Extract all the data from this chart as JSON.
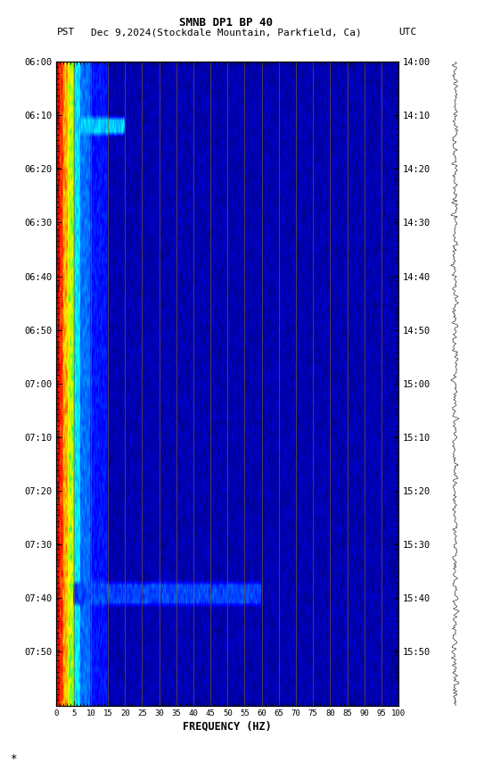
{
  "title_line1": "SMNB DP1 BP 40",
  "title_line2_left": "PST",
  "title_line2_mid": "Dec 9,2024(Stockdale Mountain, Parkfield, Ca)",
  "title_line2_right": "UTC",
  "xlabel": "FREQUENCY (HZ)",
  "freq_min": 0,
  "freq_max": 100,
  "time_labels_left": [
    "06:00",
    "06:10",
    "06:20",
    "06:30",
    "06:40",
    "06:50",
    "07:00",
    "07:10",
    "07:20",
    "07:30",
    "07:40",
    "07:50"
  ],
  "time_labels_right": [
    "14:00",
    "14:10",
    "14:20",
    "14:30",
    "14:40",
    "14:50",
    "15:00",
    "15:10",
    "15:20",
    "15:30",
    "15:40",
    "15:50"
  ],
  "freq_ticks": [
    0,
    5,
    10,
    15,
    20,
    25,
    30,
    35,
    40,
    45,
    50,
    55,
    60,
    65,
    70,
    75,
    80,
    85,
    90,
    95,
    100
  ],
  "vertical_lines_freq": [
    5,
    10,
    15,
    20,
    25,
    30,
    35,
    40,
    45,
    50,
    55,
    60,
    65,
    70,
    75,
    80,
    85,
    90,
    95
  ],
  "background_color": "#ffffff",
  "figsize": [
    5.52,
    8.64
  ],
  "dpi": 100,
  "vline_color": "#8B6914",
  "vline_alpha": 0.8,
  "vline_lw": 0.5
}
